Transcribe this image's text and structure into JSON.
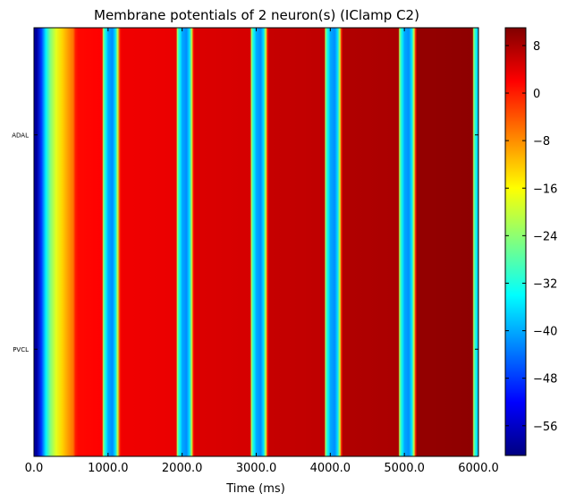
{
  "chart_data": {
    "type": "heatmap",
    "title": "Membrane potentials of 2 neuron(s) (IClamp C2)",
    "xlabel": "Time (ms)",
    "ylabel": "",
    "xlim": [
      0,
      6000
    ],
    "x_ticks": [
      "0.0",
      "1000.0",
      "2000.0",
      "3000.0",
      "4000.0",
      "5000.0",
      "6000.0"
    ],
    "x_tick_values": [
      0,
      1000,
      2000,
      3000,
      4000,
      5000,
      6000
    ],
    "rows": [
      "ADAL",
      "PVCL"
    ],
    "colormap": "jet",
    "clim": [
      -61,
      11
    ],
    "colorbar_ticks": [
      "8",
      "0",
      "−8",
      "−16",
      "−24",
      "−32",
      "−40",
      "−48",
      "−56"
    ],
    "colorbar_tick_values": [
      8,
      0,
      -8,
      -16,
      -24,
      -32,
      -40,
      -48,
      -56
    ],
    "trace_keypoints": [
      [
        0,
        -52
      ],
      [
        20,
        -60
      ],
      [
        40,
        -58
      ],
      [
        100,
        -48
      ],
      [
        160,
        -35
      ],
      [
        220,
        -25
      ],
      [
        300,
        -18
      ],
      [
        380,
        -13
      ],
      [
        460,
        -9
      ],
      [
        530,
        -6
      ],
      [
        560,
        0
      ],
      [
        600,
        1.5
      ],
      [
        920,
        2
      ],
      [
        935,
        -22
      ],
      [
        950,
        -30
      ],
      [
        980,
        -36
      ],
      [
        1000,
        -40
      ],
      [
        1060,
        -42
      ],
      [
        1100,
        -36
      ],
      [
        1130,
        -20
      ],
      [
        1160,
        0
      ],
      [
        1180,
        3
      ],
      [
        1920,
        3.5
      ],
      [
        1935,
        -22
      ],
      [
        1950,
        -30
      ],
      [
        1980,
        -36
      ],
      [
        2000,
        -40
      ],
      [
        2060,
        -42
      ],
      [
        2100,
        -36
      ],
      [
        2130,
        -20
      ],
      [
        2150,
        0
      ],
      [
        2170,
        4.5
      ],
      [
        2920,
        5
      ],
      [
        2935,
        -22
      ],
      [
        2950,
        -30
      ],
      [
        2980,
        -36
      ],
      [
        3000,
        -40
      ],
      [
        3060,
        -42
      ],
      [
        3100,
        -36
      ],
      [
        3130,
        -20
      ],
      [
        3150,
        0
      ],
      [
        3170,
        6
      ],
      [
        3920,
        6.5
      ],
      [
        3935,
        -22
      ],
      [
        3950,
        -30
      ],
      [
        3980,
        -36
      ],
      [
        4000,
        -40
      ],
      [
        4060,
        -42
      ],
      [
        4100,
        -36
      ],
      [
        4130,
        -20
      ],
      [
        4150,
        0
      ],
      [
        4170,
        7.5
      ],
      [
        4920,
        8
      ],
      [
        4935,
        -22
      ],
      [
        4950,
        -30
      ],
      [
        4980,
        -36
      ],
      [
        5000,
        -40
      ],
      [
        5060,
        -42
      ],
      [
        5100,
        -36
      ],
      [
        5130,
        -20
      ],
      [
        5150,
        0
      ],
      [
        5170,
        9.5
      ],
      [
        5920,
        10
      ],
      [
        5935,
        -22
      ],
      [
        5950,
        -30
      ],
      [
        5980,
        -36
      ],
      [
        6000,
        -40
      ]
    ]
  }
}
